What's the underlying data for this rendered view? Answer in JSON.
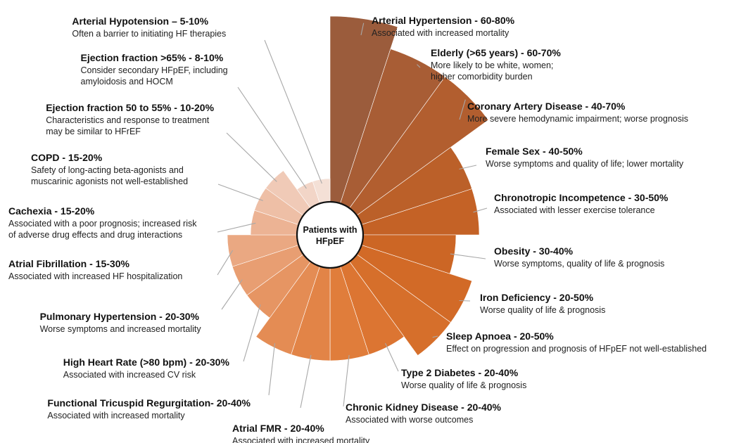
{
  "chart_data": {
    "type": "polar-bar",
    "center_label": [
      "Patients with",
      "HFpEF"
    ],
    "categories": [
      {
        "name": "Arterial Hypertension - 60-80%",
        "value": 80,
        "color": "#9b5c3c",
        "desc": [
          "Associated with increased mortality"
        ]
      },
      {
        "name": "Elderly (>65 years) - 60-70%",
        "value": 70,
        "color": "#a85d35",
        "desc": [
          "More likely to be white, women;",
          "higher comorbidity burden"
        ]
      },
      {
        "name": "Coronary Artery Disease - 40-70%",
        "value": 70,
        "color": "#b25e2f",
        "desc": [
          "More severe hemodynamic impairment; worse prognosis"
        ]
      },
      {
        "name": "Female Sex - 40-50%",
        "value": 50,
        "color": "#bb6029",
        "desc": [
          "Worse symptoms and quality of life; lower mortality"
        ]
      },
      {
        "name": "Chronotropic Incompetence - 30-50%",
        "value": 50,
        "color": "#c46226",
        "desc": [
          "Associated with lesser exercise tolerance"
        ]
      },
      {
        "name": "Obesity - 30-40%",
        "value": 40,
        "color": "#cc6625",
        "desc": [
          "Worse symptoms, quality of life & prognosis"
        ]
      },
      {
        "name": "Iron Deficiency - 20-50%",
        "value": 50,
        "color": "#d26a27",
        "desc": [
          "Worse quality of life & prognosis"
        ]
      },
      {
        "name": "Sleep Apnoea - 20-50%",
        "value": 50,
        "color": "#d66f2b",
        "desc": [
          "Effect on progression and prognosis of HFpEF not well-established"
        ]
      },
      {
        "name": "Type 2 Diabetes - 20-40%",
        "value": 40,
        "color": "#dc7532",
        "desc": [
          "Worse quality of life & prognosis"
        ]
      },
      {
        "name": "Chronic Kidney Disease - 20-40%",
        "value": 40,
        "color": "#e07d3b",
        "desc": [
          "Associated with worse outcomes"
        ]
      },
      {
        "name": "Atrial FMR - 20-40%",
        "value": 40,
        "color": "#e28447",
        "desc": [
          "Associated with increased mortality"
        ]
      },
      {
        "name": "Functional Tricuspid Regurgitation- 20-40%",
        "value": 40,
        "color": "#e48c54",
        "desc": [
          "Associated with increased mortality"
        ]
      },
      {
        "name": "High Heart Rate (>80 bpm) - 20-30%",
        "value": 30,
        "color": "#e69563",
        "desc": [
          "Associated with increased CV risk"
        ]
      },
      {
        "name": "Pulmonary Hypertension - 20-30%",
        "value": 30,
        "color": "#e89e72",
        "desc": [
          "Worse symptoms and increased mortality"
        ]
      },
      {
        "name": "Atrial Fibrillation - 15-30%",
        "value": 30,
        "color": "#eaa882",
        "desc": [
          "Associated with increased HF hospitalization"
        ]
      },
      {
        "name": "Cachexia - 15-20%",
        "value": 20,
        "color": "#ecb394",
        "desc": [
          "Associated with a poor prognosis; increased risk",
          "of adverse drug effects and drug interactions"
        ]
      },
      {
        "name": "COPD - 15-20%",
        "value": 20,
        "color": "#eebfa6",
        "desc": [
          "Safety of long-acting beta-agonists and",
          "muscarinic agonists not well-established"
        ]
      },
      {
        "name": "Ejection fraction 50 to 55% - 10-20%",
        "value": 20,
        "color": "#f0cab7",
        "desc": [
          "Characteristics and response to treatment",
          "may be similar to HFrEF"
        ]
      },
      {
        "name": "Ejection fraction >65% - 8-10%",
        "value": 10,
        "color": "#f2d5c7",
        "desc": [
          "Consider secondary HFpEF, including",
          "amyloidosis and HOCM"
        ]
      },
      {
        "name": "Arterial Hypotension – 5-10%",
        "value": 10,
        "color": "#f4e0d6",
        "desc": [
          "Often a barrier to initiating HF therapies"
        ]
      }
    ]
  }
}
